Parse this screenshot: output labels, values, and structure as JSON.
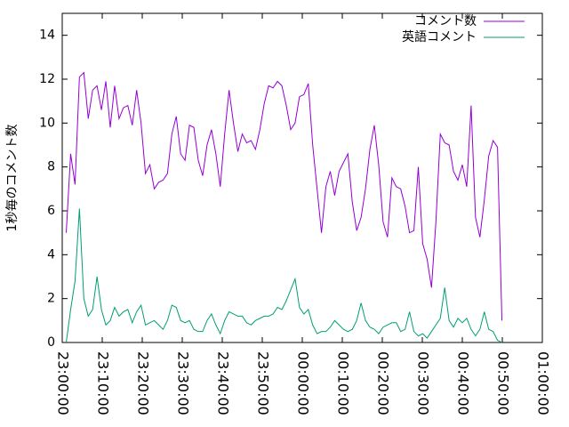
{
  "chart_data": {
    "type": "line",
    "ylabel": "1秒毎のコメント数",
    "x": [
      1,
      2.1,
      3.2,
      4.3,
      5.4,
      6.5,
      7.6,
      8.7,
      9.8,
      10.9,
      12,
      13.1,
      14.2,
      15.3,
      16.4,
      17.5,
      18.6,
      19.7,
      20.8,
      21.9,
      23,
      24.1,
      25.2,
      26.3,
      27.4,
      28.5,
      29.6,
      30.7,
      31.8,
      32.9,
      34,
      35.1,
      36.2,
      37.3,
      38.4,
      39.5,
      40.6,
      41.7,
      42.8,
      43.9,
      45,
      46.1,
      47.2,
      48.3,
      49.4,
      50.5,
      51.6,
      52.7,
      53.8,
      54.9,
      56,
      57.1,
      58.2,
      59.3,
      60.4,
      61.5,
      62.6,
      63.7,
      64.8,
      65.9,
      67,
      68.1,
      69.2,
      70.3,
      71.4,
      72.5,
      73.6,
      74.7,
      75.8,
      76.9,
      78,
      79.1,
      80.2,
      81.3,
      82.4,
      83.5,
      84.6,
      85.7,
      86.8,
      87.9,
      89,
      90.1,
      91.2,
      92.3,
      93.4,
      94.5,
      95.6,
      96.7,
      97.8,
      98.9,
      100,
      101.1,
      102.2,
      103.3,
      104.4,
      105.5,
      106.6,
      107.7,
      108.8,
      109.9
    ],
    "series": [
      {
        "name": "コメント数",
        "color": "#9400d3",
        "values": [
          5.0,
          8.6,
          7.2,
          12.1,
          12.3,
          10.2,
          11.5,
          11.7,
          10.6,
          11.9,
          9.8,
          11.7,
          10.2,
          10.7,
          10.8,
          9.9,
          11.5,
          10.0,
          7.7,
          8.1,
          7.0,
          7.3,
          7.4,
          7.7,
          9.5,
          10.3,
          8.6,
          8.3,
          9.9,
          9.8,
          8.3,
          7.6,
          9.0,
          9.7,
          8.6,
          7.1,
          9.5,
          11.5,
          10.0,
          8.7,
          9.5,
          9.1,
          9.2,
          8.8,
          9.7,
          10.9,
          11.7,
          11.6,
          11.9,
          11.7,
          10.8,
          9.7,
          10.0,
          11.2,
          11.3,
          11.8,
          9.0,
          7.0,
          5.0,
          7.1,
          7.8,
          6.7,
          7.8,
          8.2,
          8.6,
          6.4,
          5.1,
          5.7,
          7.0,
          8.8,
          9.9,
          8.1,
          5.5,
          4.8,
          7.5,
          7.1,
          7.0,
          6.2,
          5.0,
          5.1,
          8.0,
          4.5,
          3.8,
          2.5,
          5.5,
          9.5,
          9.1,
          9.0,
          7.8,
          7.4,
          8.1,
          7.1,
          10.8,
          5.7,
          4.8,
          6.5,
          8.5,
          9.2,
          8.9,
          1.0
        ]
      },
      {
        "name": "英語コメント",
        "color": "#009e73",
        "values": [
          0.0,
          1.5,
          2.8,
          6.1,
          2.0,
          1.2,
          1.5,
          3.0,
          1.5,
          0.8,
          1.0,
          1.6,
          1.2,
          1.4,
          1.5,
          0.9,
          1.4,
          1.7,
          0.8,
          0.9,
          1.0,
          0.8,
          0.6,
          1.0,
          1.7,
          1.6,
          1.0,
          0.9,
          1.0,
          0.6,
          0.5,
          0.5,
          1.0,
          1.3,
          0.8,
          0.4,
          1.0,
          1.4,
          1.3,
          1.2,
          1.2,
          0.9,
          0.8,
          1.0,
          1.1,
          1.2,
          1.2,
          1.3,
          1.6,
          1.5,
          1.9,
          2.4,
          2.9,
          1.6,
          1.3,
          1.5,
          0.8,
          0.4,
          0.5,
          0.5,
          0.7,
          1.0,
          0.8,
          0.6,
          0.5,
          0.6,
          1.0,
          1.8,
          1.0,
          0.7,
          0.6,
          0.4,
          0.7,
          0.8,
          0.9,
          0.9,
          0.5,
          0.6,
          1.4,
          0.5,
          0.3,
          0.4,
          0.2,
          0.5,
          0.8,
          1.1,
          2.5,
          1.0,
          0.7,
          1.1,
          0.9,
          1.1,
          0.6,
          0.3,
          0.6,
          1.4,
          0.6,
          0.5,
          0.1,
          0.0
        ]
      }
    ],
    "xlim": [
      0,
      120
    ],
    "xticks": [
      {
        "value": 0,
        "label": "23:00:00"
      },
      {
        "value": 10,
        "label": "23:10:00"
      },
      {
        "value": 20,
        "label": "23:20:00"
      },
      {
        "value": 30,
        "label": "23:30:00"
      },
      {
        "value": 40,
        "label": "23:40:00"
      },
      {
        "value": 50,
        "label": "23:50:00"
      },
      {
        "value": 60,
        "label": "00:00:00"
      },
      {
        "value": 70,
        "label": "00:10:00"
      },
      {
        "value": 80,
        "label": "00:20:00"
      },
      {
        "value": 90,
        "label": "00:30:00"
      },
      {
        "value": 100,
        "label": "00:40:00"
      },
      {
        "value": 110,
        "label": "00:50:00"
      },
      {
        "value": 120,
        "label": "01:00:00"
      }
    ],
    "ylim": [
      0,
      15
    ],
    "yticks": [
      0,
      2,
      4,
      6,
      8,
      10,
      12,
      14
    ],
    "legend": "top-right"
  }
}
